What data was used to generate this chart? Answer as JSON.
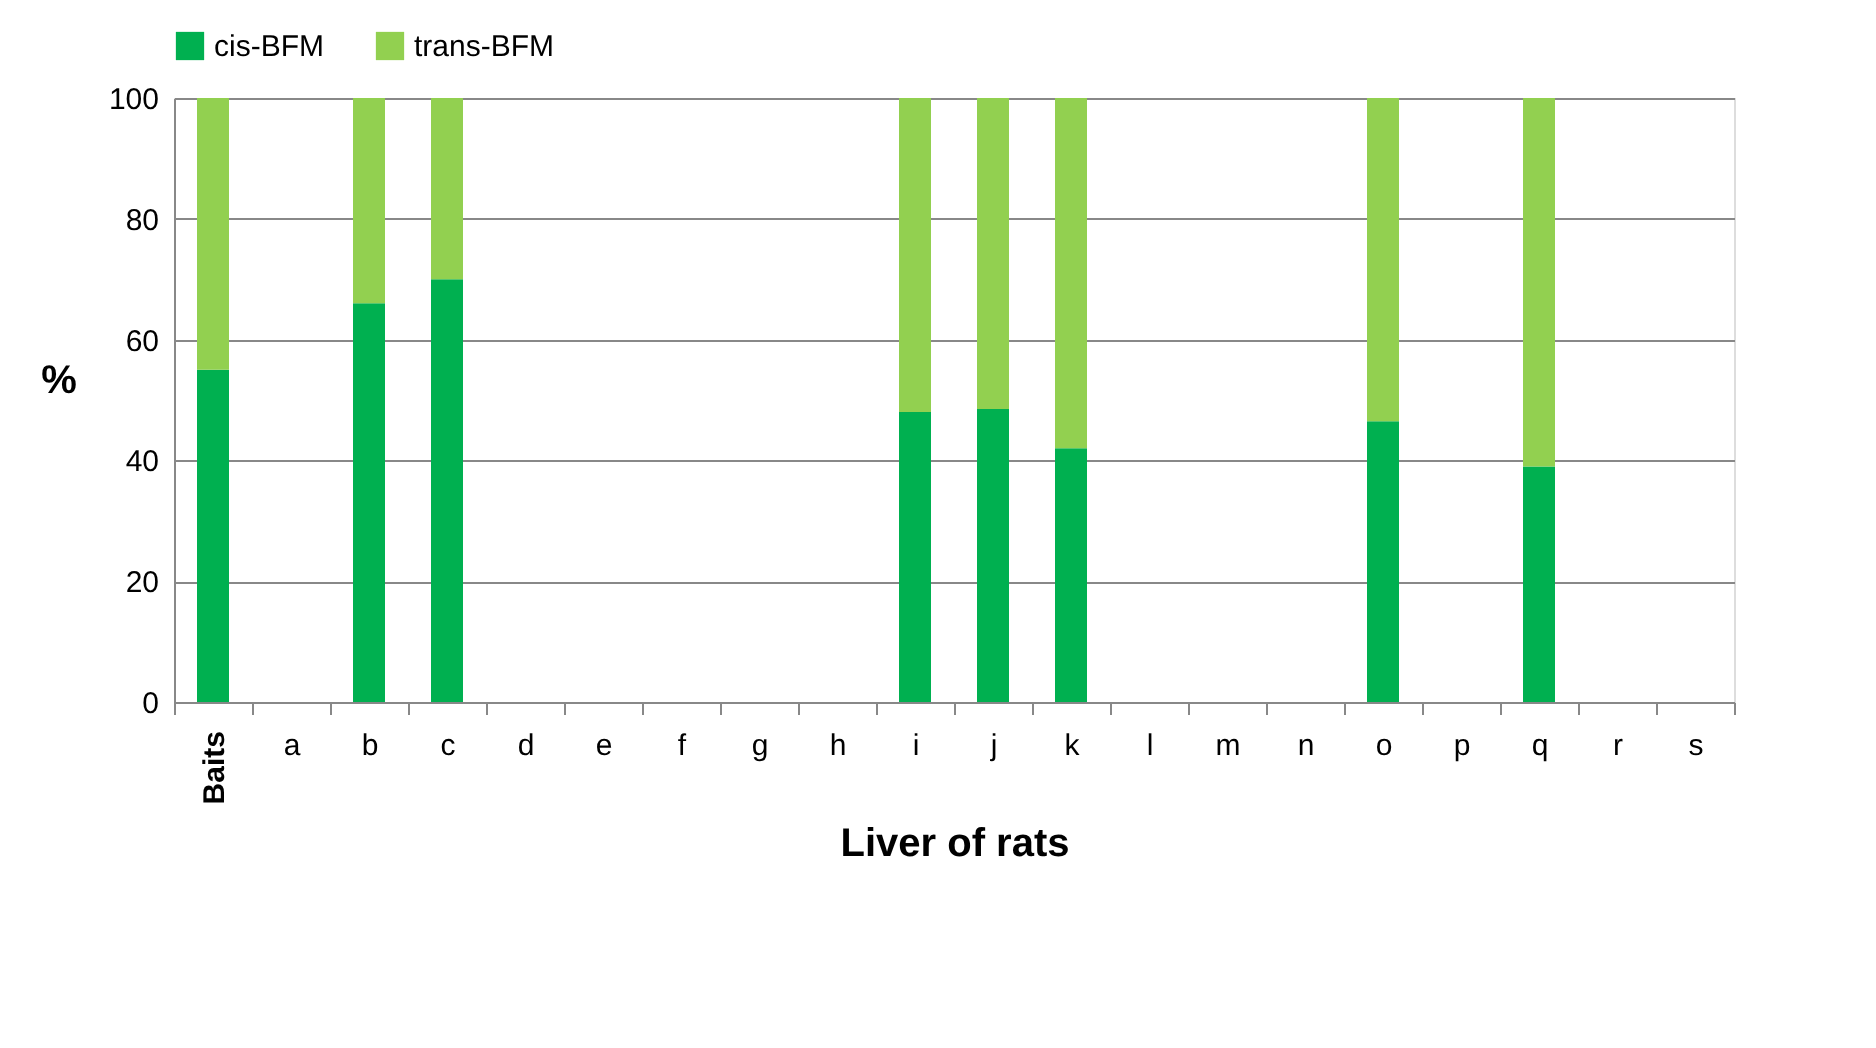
{
  "chart_data": {
    "type": "bar",
    "stacked": true,
    "xlabel": "Liver of rats",
    "ylabel": "%",
    "categories": [
      "Baits",
      "a",
      "b",
      "c",
      "d",
      "e",
      "f",
      "g",
      "h",
      "i",
      "j",
      "k",
      "l",
      "m",
      "n",
      "o",
      "p",
      "q",
      "r",
      "s"
    ],
    "series": [
      {
        "name": "cis-BFM",
        "color": "#00b050",
        "values": [
          55,
          null,
          66,
          70,
          null,
          null,
          null,
          null,
          null,
          48,
          48.5,
          42,
          null,
          null,
          null,
          46.5,
          null,
          39,
          null,
          null
        ]
      },
      {
        "name": "trans-BFM",
        "color": "#92d050",
        "values": [
          45,
          null,
          34,
          30,
          null,
          null,
          null,
          null,
          null,
          52,
          51.5,
          58,
          null,
          null,
          null,
          53.5,
          null,
          61,
          null,
          null
        ]
      }
    ],
    "ylim": [
      0,
      100
    ],
    "yticks": [
      0,
      20,
      40,
      60,
      80,
      100
    ],
    "grid": "y",
    "legend": "top"
  }
}
